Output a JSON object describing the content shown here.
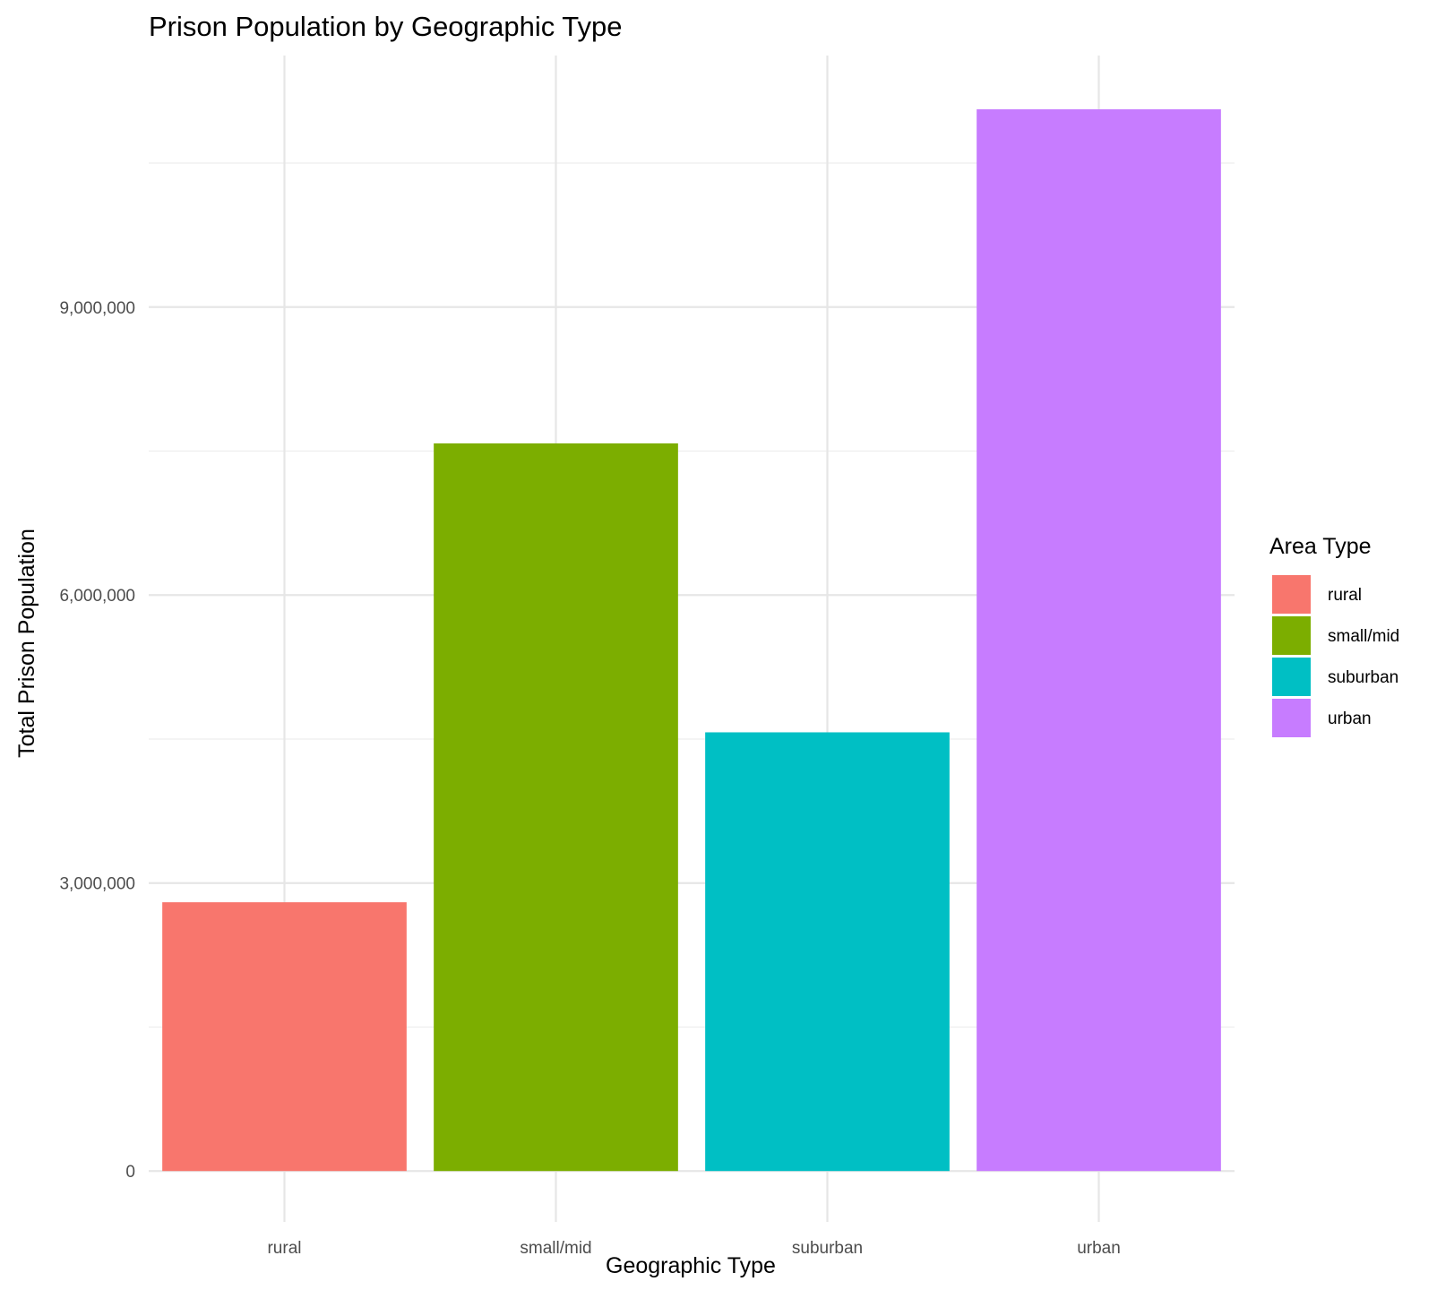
{
  "chart_data": {
    "type": "bar",
    "title": "Prison Population by Geographic Type",
    "xlabel": "Geographic Type",
    "ylabel": "Total Prison Population",
    "categories": [
      "rural",
      "small/mid",
      "suburban",
      "urban"
    ],
    "values": [
      2800000,
      7580000,
      4570000,
      11060000
    ],
    "colors": [
      "#F8766D",
      "#7CAE00",
      "#00BFC4",
      "#C77CFF"
    ],
    "ylim": [
      -530000,
      11620000
    ],
    "yticks": [
      0,
      3000000,
      6000000,
      9000000
    ],
    "ytick_labels": [
      "0",
      "3,000,000",
      "6,000,000",
      "9,000,000"
    ],
    "grid": true,
    "legend": {
      "title": "Area Type",
      "position": "right",
      "entries": [
        "rural",
        "small/mid",
        "suburban",
        "urban"
      ]
    }
  }
}
